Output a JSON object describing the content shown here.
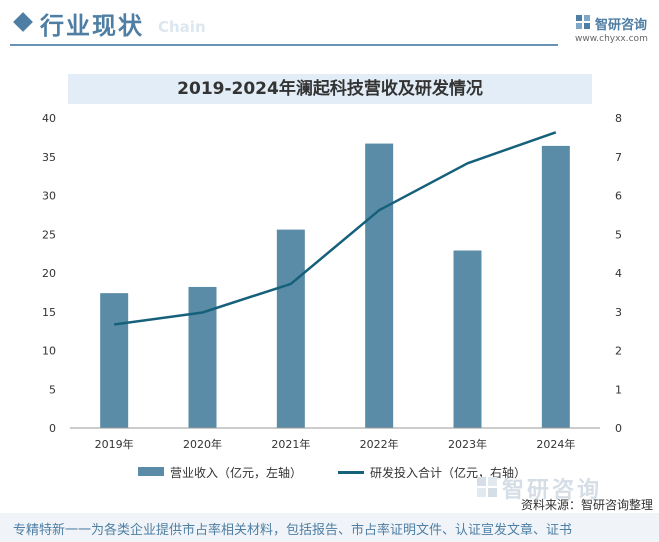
{
  "header": {
    "title": "行业现状",
    "watermark": "Chain"
  },
  "logo": {
    "name": "智研咨询",
    "url": "www.chyxx.com"
  },
  "chart_data": {
    "type": "bar+line",
    "title": "2019-2024年澜起科技营收及研发情况",
    "categories": [
      "2019年",
      "2020年",
      "2021年",
      "2022年",
      "2023年",
      "2024年"
    ],
    "series": [
      {
        "name": "营业收入（亿元，左轴）",
        "type": "bar",
        "axis": "left",
        "values": [
          17.4,
          18.2,
          25.6,
          36.7,
          22.9,
          36.4
        ],
        "color": "#5b8ca7"
      },
      {
        "name": "研发投入合计（亿元，右轴）",
        "type": "line",
        "axis": "right",
        "values": [
          2.67,
          2.98,
          3.72,
          5.62,
          6.83,
          7.63
        ],
        "color": "#15607a"
      }
    ],
    "y_left": {
      "min": 0,
      "max": 40,
      "ticks": [
        0,
        5,
        10,
        15,
        20,
        25,
        30,
        35,
        40
      ]
    },
    "y_right": {
      "min": 0,
      "max": 8,
      "ticks": [
        0,
        1,
        2,
        3,
        4,
        5,
        6,
        7,
        8
      ]
    },
    "grid": false,
    "legend_position": "bottom"
  },
  "source": "资料来源：智研咨询整理",
  "footer": "专精特新一一为各类企业提供市占率相关材料，包括报告、市占率证明文件、认证宣发文章、证书",
  "bottom_logo": "智研咨询"
}
